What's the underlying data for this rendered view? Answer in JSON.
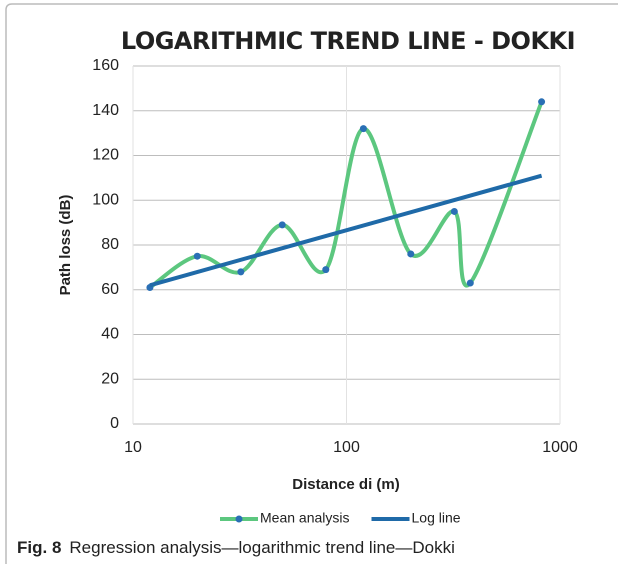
{
  "chart_data": {
    "type": "line",
    "title": "LOGARITHMIC TREND LINE - DOKKI",
    "xlabel": "Distance di (m)",
    "ylabel": "Path loss (dB)",
    "xscale": "log",
    "xlim": [
      10,
      1000
    ],
    "xticks": [
      10,
      100,
      1000
    ],
    "ylim": [
      0,
      160
    ],
    "yticks": [
      0,
      20,
      40,
      60,
      80,
      100,
      120,
      140,
      160
    ],
    "grid": true,
    "legend": "bottom",
    "series": [
      {
        "name": "Mean analysis",
        "color": "#5cc77f",
        "marker_color": "#2a6fb5",
        "smooth": true,
        "x": [
          12,
          20,
          32,
          50,
          80,
          120,
          200,
          320,
          380,
          820
        ],
        "values": [
          61,
          75,
          68,
          89,
          69,
          132,
          76,
          95,
          63,
          144
        ]
      },
      {
        "name": "Log line",
        "color": "#1f6aa8",
        "smooth": false,
        "x": [
          12,
          820
        ],
        "values": [
          62,
          111
        ]
      }
    ]
  },
  "caption": {
    "label": "Fig. 8",
    "text": "Regression analysis—logarithmic trend line—Dokki"
  }
}
